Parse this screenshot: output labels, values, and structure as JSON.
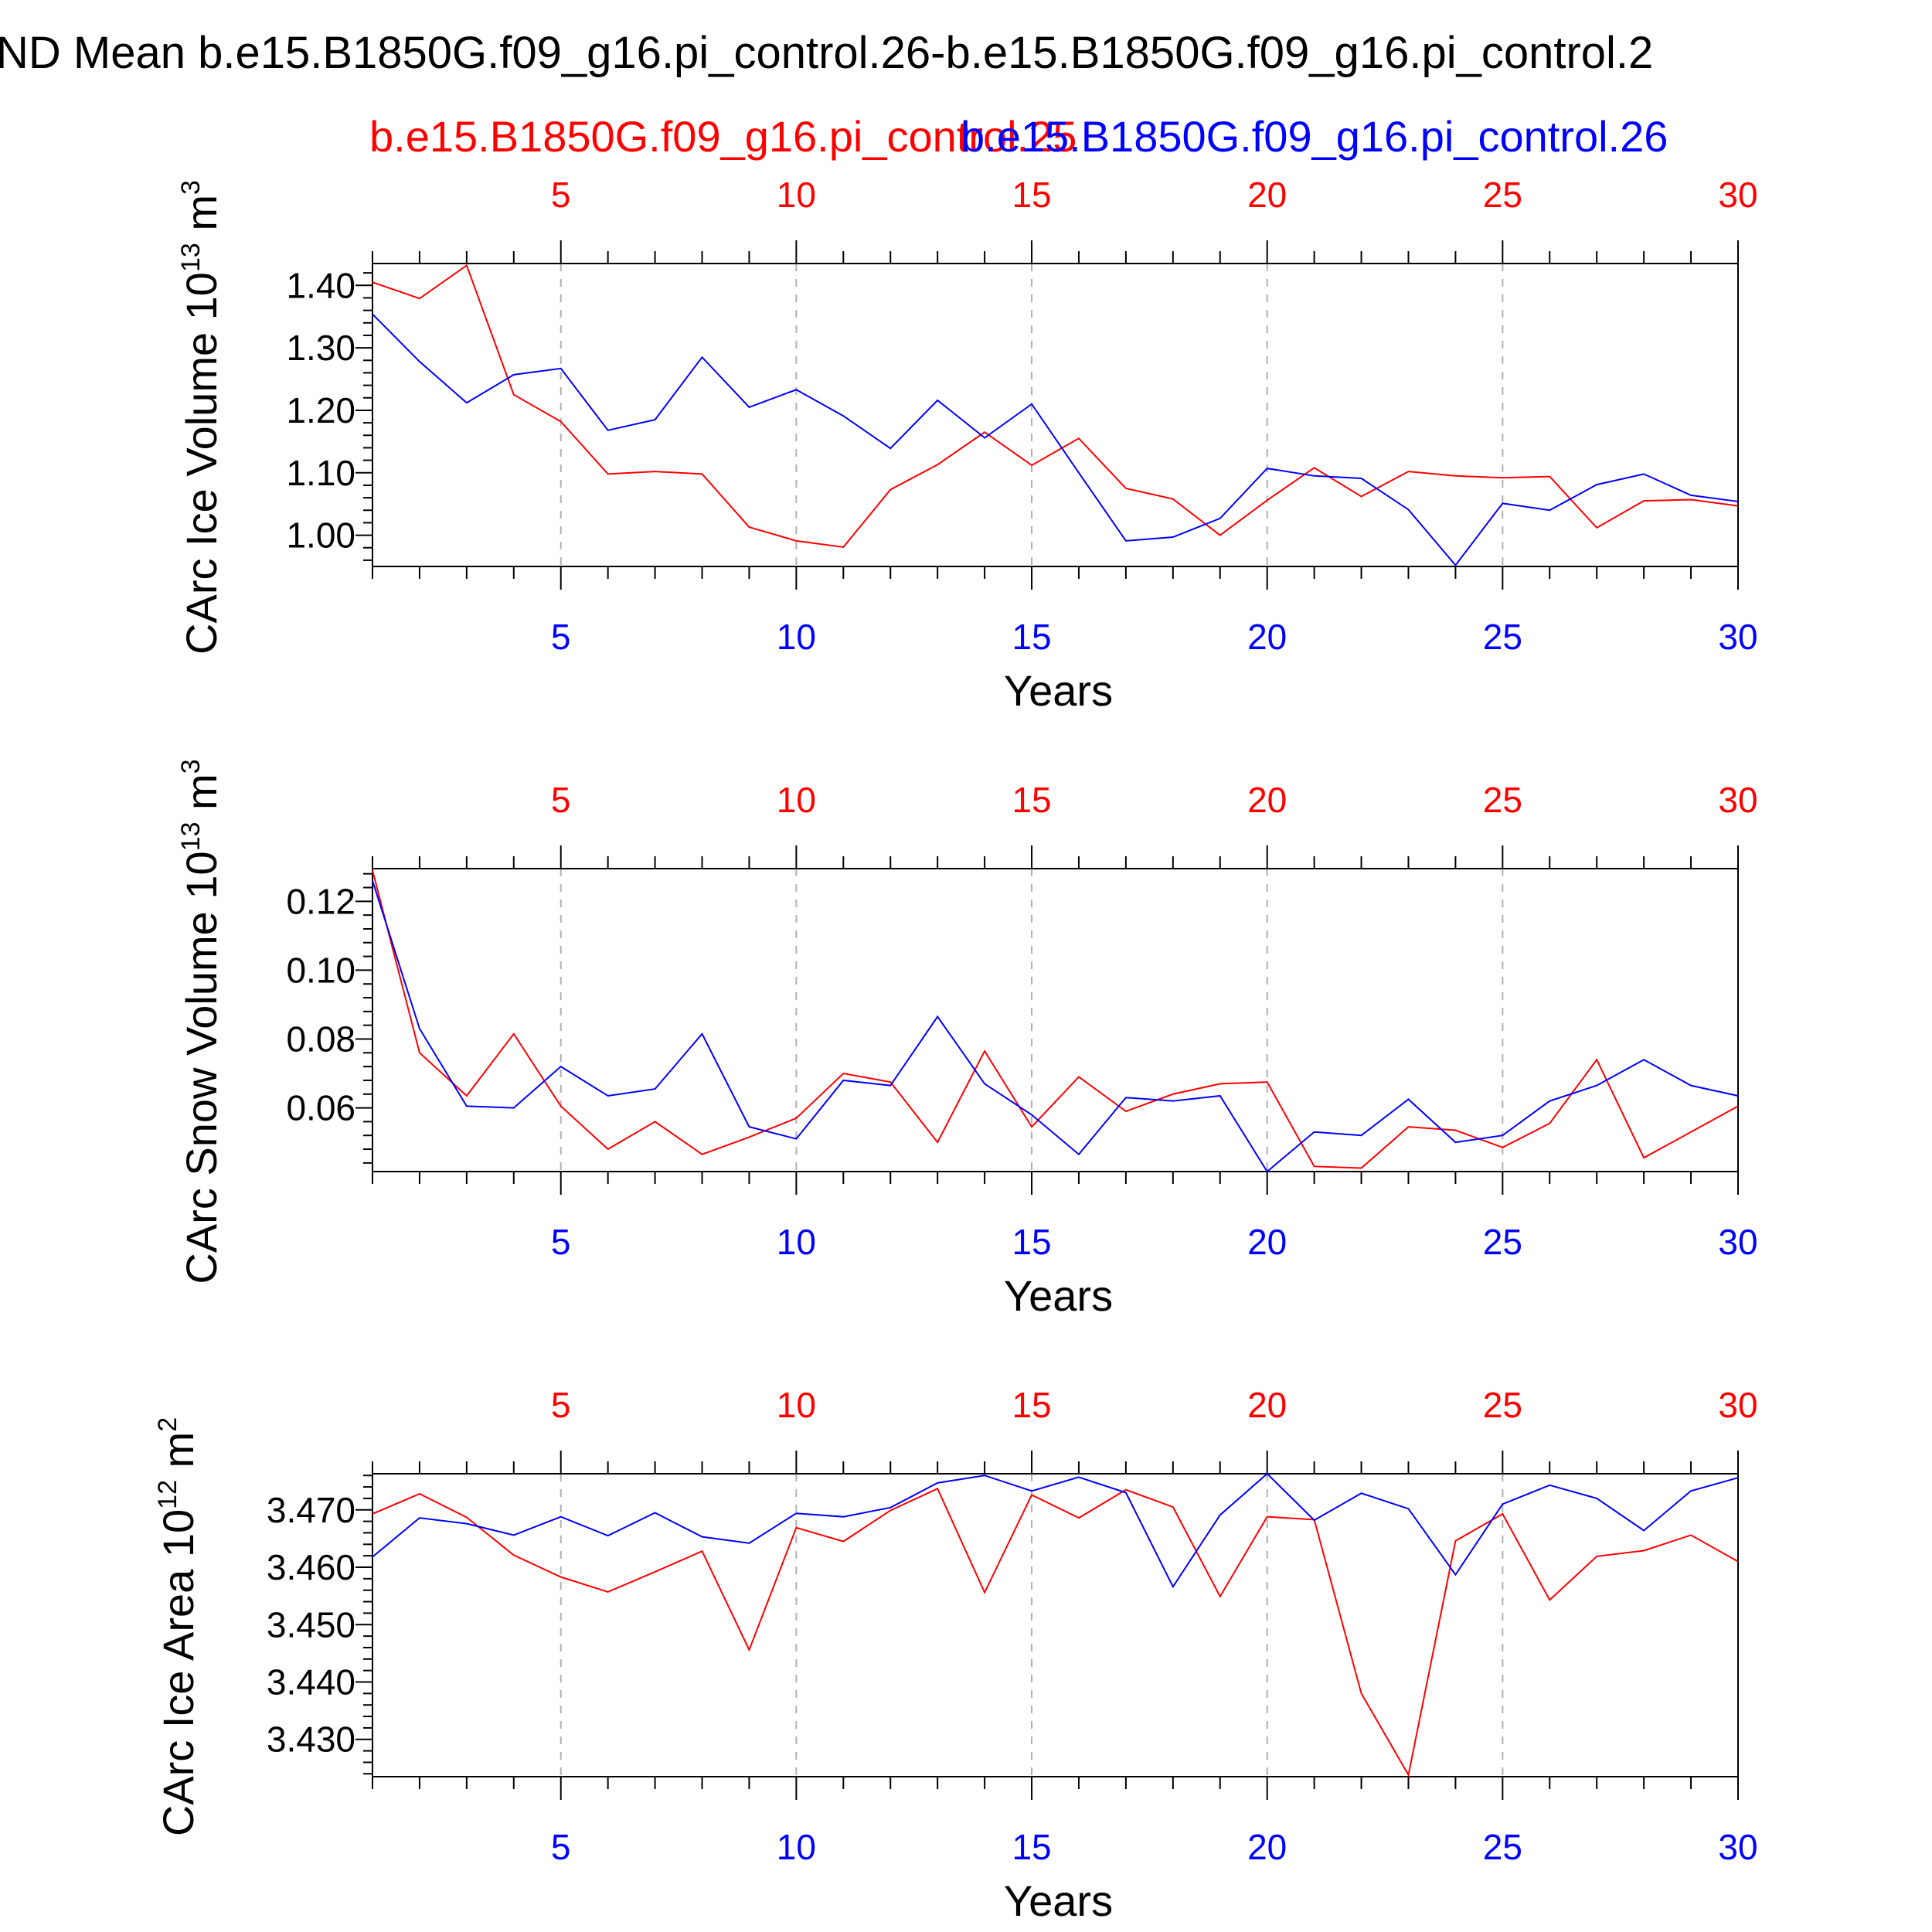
{
  "title": "ND Mean b.e15.B1850G.f09_g16.pi_control.26-b.e15.B1850G.f09_g16.pi_control.2",
  "legend": {
    "red_label": "b.e15.B1850G.f09_g16.pi_control.25",
    "blue_label": "b.e15.B1850G.f09_g16.pi_control.26",
    "red_color": "#ff0000",
    "blue_color": "#0000ff"
  },
  "chart_data": [
    {
      "type": "line",
      "ylabel": "CArc Ice Volume 10^13 m^3",
      "ylabel_main": "CArc Ice Volume 10",
      "ylabel_exp": "13",
      "ylabel_unit": " m",
      "ylabel_unit_exp": "3",
      "xlabel": "Years",
      "xlim": [
        1,
        30
      ],
      "ylim": [
        0.95,
        1.435
      ],
      "yticks": [
        "1.40",
        "1.30",
        "1.20",
        "1.10",
        "1.00"
      ],
      "yticks_values": [
        1.4,
        1.3,
        1.2,
        1.1,
        1.0
      ],
      "xticks": [
        "5",
        "10",
        "15",
        "20",
        "25",
        "30"
      ],
      "x": [
        1,
        2,
        3,
        4,
        5,
        6,
        7,
        8,
        9,
        10,
        11,
        12,
        13,
        14,
        15,
        16,
        17,
        18,
        19,
        20,
        21,
        22,
        23,
        24,
        25,
        26,
        27,
        28,
        29,
        30
      ],
      "series": [
        {
          "name": "b.e15.B1850G.f09_g16.pi_control.25",
          "color": "#ff0000",
          "values": [
            1.405,
            1.379,
            1.432,
            1.225,
            1.182,
            1.098,
            1.102,
            1.098,
            1.013,
            0.991,
            0.981,
            1.073,
            1.113,
            1.165,
            1.112,
            1.155,
            1.075,
            1.058,
            1.0,
            1.056,
            1.108,
            1.062,
            1.102,
            1.095,
            1.092,
            1.094,
            1.012,
            1.055,
            1.057,
            1.047
          ]
        },
        {
          "name": "b.e15.B1850G.f09_g16.pi_control.26",
          "color": "#0000ff",
          "values": [
            1.354,
            1.278,
            1.212,
            1.257,
            1.267,
            1.168,
            1.185,
            1.285,
            1.205,
            1.233,
            1.191,
            1.139,
            1.216,
            1.156,
            1.21,
            1.1,
            0.991,
            0.997,
            1.027,
            1.107,
            1.095,
            1.091,
            1.041,
            0.952,
            1.051,
            1.04,
            1.081,
            1.098,
            1.064,
            1.054
          ]
        }
      ]
    },
    {
      "type": "line",
      "ylabel": "CArc Snow Volume 10^13 m^3",
      "ylabel_main": "CArc Snow Volume 10",
      "ylabel_exp": "13",
      "ylabel_unit": " m",
      "ylabel_unit_exp": "3",
      "xlabel": "Years",
      "xlim": [
        1,
        30
      ],
      "ylim": [
        0.0415,
        0.1295
      ],
      "yticks": [
        "0.12",
        "0.10",
        "0.08",
        "0.06"
      ],
      "yticks_values": [
        0.12,
        0.1,
        0.08,
        0.06
      ],
      "xticks": [
        "5",
        "10",
        "15",
        "20",
        "25",
        "30"
      ],
      "x": [
        1,
        2,
        3,
        4,
        5,
        6,
        7,
        8,
        9,
        10,
        11,
        12,
        13,
        14,
        15,
        16,
        17,
        18,
        19,
        20,
        21,
        22,
        23,
        24,
        25,
        26,
        27,
        28,
        29,
        30
      ],
      "series": [
        {
          "name": "b.e15.B1850G.f09_g16.pi_control.25",
          "color": "#ff0000",
          "values": [
            0.129,
            0.076,
            0.0635,
            0.0815,
            0.0605,
            0.048,
            0.056,
            0.0465,
            0.0515,
            0.057,
            0.07,
            0.0675,
            0.05,
            0.0765,
            0.0545,
            0.069,
            0.059,
            0.064,
            0.067,
            0.0675,
            0.043,
            0.0425,
            0.0545,
            0.0535,
            0.0485,
            0.0555,
            0.074,
            0.0455,
            0.053,
            0.0605
          ]
        },
        {
          "name": "b.e15.B1850G.f09_g16.pi_control.26",
          "color": "#0000ff",
          "values": [
            0.126,
            0.083,
            0.0605,
            0.06,
            0.072,
            0.0635,
            0.0655,
            0.0815,
            0.0545,
            0.051,
            0.068,
            0.0665,
            0.0865,
            0.067,
            0.058,
            0.0465,
            0.063,
            0.062,
            0.0635,
            0.0415,
            0.053,
            0.052,
            0.0625,
            0.05,
            0.052,
            0.062,
            0.0665,
            0.074,
            0.0665,
            0.0635
          ]
        }
      ]
    },
    {
      "type": "line",
      "ylabel": "CArc Ice Area 10^12 m^2",
      "ylabel_main": "CArc Ice Area 10",
      "ylabel_exp": "12",
      "ylabel_unit": " m",
      "ylabel_unit_exp": "2",
      "xlabel": "Years",
      "xlim": [
        1,
        30
      ],
      "ylim": [
        3.4235,
        3.4763
      ],
      "yticks": [
        "3.470",
        "3.460",
        "3.450",
        "3.440",
        "3.430"
      ],
      "yticks_values": [
        3.47,
        3.46,
        3.45,
        3.44,
        3.43
      ],
      "xticks": [
        "5",
        "10",
        "15",
        "20",
        "25",
        "30"
      ],
      "x": [
        1,
        2,
        3,
        4,
        5,
        6,
        7,
        8,
        9,
        10,
        11,
        12,
        13,
        14,
        15,
        16,
        17,
        18,
        19,
        20,
        21,
        22,
        23,
        24,
        25,
        26,
        27,
        28,
        29,
        30
      ],
      "series": [
        {
          "name": "b.e15.B1850G.f09_g16.pi_control.25",
          "color": "#ff0000",
          "values": [
            3.4693,
            3.4728,
            3.4687,
            3.4621,
            3.4583,
            3.4557,
            3.4592,
            3.4628,
            3.4456,
            3.4669,
            3.4645,
            3.4699,
            3.4737,
            3.4556,
            3.4726,
            3.4686,
            3.4735,
            3.4705,
            3.4549,
            3.4688,
            3.4683,
            3.438,
            3.4238,
            3.4646,
            3.4693,
            3.4543,
            3.4619,
            3.4629,
            3.4656,
            3.461
          ]
        },
        {
          "name": "b.e15.B1850G.f09_g16.pi_control.26",
          "color": "#0000ff",
          "values": [
            3.4618,
            3.4686,
            3.4676,
            3.4656,
            3.4688,
            3.4655,
            3.4695,
            3.4653,
            3.4642,
            3.4694,
            3.4688,
            3.4704,
            3.4747,
            3.476,
            3.4733,
            3.4757,
            3.473,
            3.4566,
            3.4691,
            3.4763,
            3.4682,
            3.4729,
            3.4702,
            3.4587,
            3.471,
            3.4743,
            3.472,
            3.4664,
            3.4733,
            3.4756
          ]
        }
      ]
    }
  ]
}
